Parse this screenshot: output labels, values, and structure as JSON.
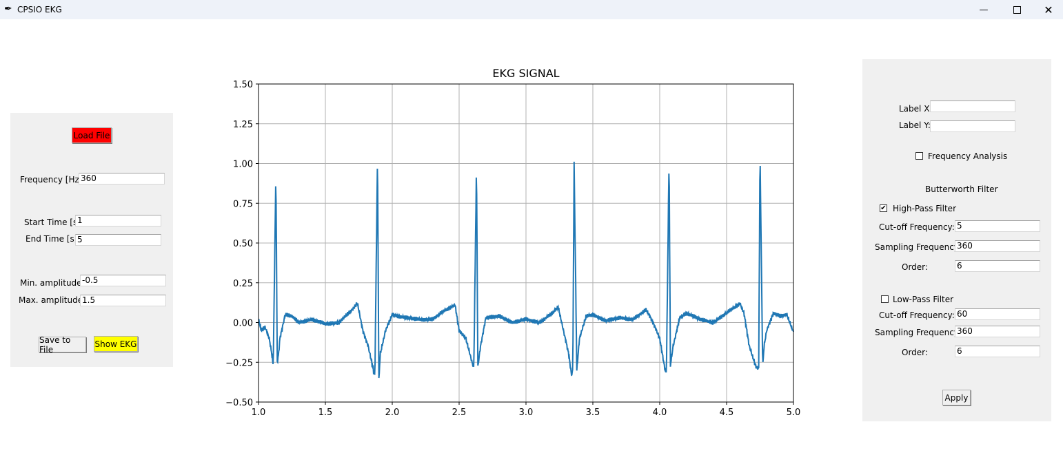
{
  "window": {
    "title": "CPSIO EKG",
    "icon": "feather-icon"
  },
  "left_panel": {
    "load_button": "Load File",
    "frequency_label": "Frequency [Hz]:",
    "frequency_value": "360",
    "start_time_label": "Start Time [s]:",
    "start_time_value": "1",
    "end_time_label": "End Time [s]:",
    "end_time_value": "5",
    "min_amp_label": "Min. amplitude:",
    "min_amp_value": "-0.5",
    "max_amp_label": "Max. amplitude:",
    "max_amp_value": "1.5",
    "save_button": "Save to File",
    "show_button": "Show EKG",
    "colors": {
      "load_button": "#ff0000",
      "show_button": "#ffff00"
    }
  },
  "right_panel": {
    "label_x_label": "Label X:",
    "label_x_value": "",
    "label_y_label": "Label Y:",
    "label_y_value": "",
    "frequency_analysis_label": "Frequency Analysis",
    "frequency_analysis_checked": false,
    "butterworth_title": "Butterworth Filter",
    "highpass": {
      "label": "High-Pass Filter",
      "checked": true,
      "cutoff_label": "Cut-off Frequency:",
      "cutoff_value": "5",
      "sampling_label": "Sampling Frequency:",
      "sampling_value": "360",
      "order_label": "Order:",
      "order_value": "6"
    },
    "lowpass": {
      "label": "Low-Pass Filter",
      "checked": false,
      "cutoff_label": "Cut-off Frequency:",
      "cutoff_value": "60",
      "sampling_label": "Sampling Frequency:",
      "sampling_value": "360",
      "order_label": "Order:",
      "order_value": "6"
    },
    "apply_button": "Apply"
  },
  "chart_data": {
    "type": "line",
    "title": "EKG SIGNAL",
    "xlabel": "",
    "ylabel": "",
    "xlim": [
      1.0,
      5.0
    ],
    "ylim": [
      -0.5,
      1.5
    ],
    "xticks": [
      "1.0",
      "1.5",
      "2.0",
      "2.5",
      "3.0",
      "3.5",
      "4.0",
      "4.5",
      "5.0"
    ],
    "yticks": [
      "−0.50",
      "−0.25",
      "0.00",
      "0.25",
      "0.50",
      "0.75",
      "1.00",
      "1.25",
      "1.50"
    ],
    "grid": true,
    "color": "#1f77b4",
    "series": [
      {
        "x": [
          1.0,
          1.02,
          1.05,
          1.08,
          1.1,
          1.11,
          1.13,
          1.14,
          1.15,
          1.16,
          1.2,
          1.25,
          1.3,
          1.4,
          1.5,
          1.6,
          1.7,
          1.74,
          1.78,
          1.82,
          1.86,
          1.87,
          1.89,
          1.9,
          1.91,
          1.95,
          2.0,
          2.1,
          2.2,
          2.3,
          2.4,
          2.47,
          2.5,
          2.55,
          2.6,
          2.61,
          2.63,
          2.64,
          2.66,
          2.7,
          2.8,
          2.9,
          3.0,
          3.1,
          3.2,
          3.24,
          3.28,
          3.32,
          3.34,
          3.35,
          3.36,
          3.38,
          3.4,
          3.45,
          3.5,
          3.6,
          3.7,
          3.8,
          3.9,
          3.95,
          4.0,
          4.04,
          4.05,
          4.07,
          4.08,
          4.1,
          4.15,
          4.2,
          4.3,
          4.4,
          4.5,
          4.6,
          4.63,
          4.67,
          4.72,
          4.74,
          4.75,
          4.77,
          4.78,
          4.8,
          4.85,
          4.9,
          4.95,
          5.0
        ],
        "y": [
          0.02,
          -0.05,
          -0.03,
          -0.1,
          -0.2,
          -0.27,
          0.94,
          -0.25,
          -0.2,
          -0.1,
          0.05,
          0.04,
          0.0,
          0.02,
          -0.01,
          0.0,
          0.08,
          0.12,
          -0.05,
          -0.15,
          -0.3,
          -0.34,
          1.06,
          -0.36,
          -0.2,
          -0.05,
          0.05,
          0.03,
          0.02,
          0.02,
          0.08,
          0.11,
          -0.05,
          -0.1,
          -0.26,
          -0.28,
          0.99,
          -0.28,
          -0.15,
          0.03,
          0.04,
          0.0,
          0.02,
          0.0,
          0.06,
          0.1,
          -0.05,
          -0.2,
          -0.33,
          -0.3,
          1.0,
          -0.3,
          -0.1,
          0.04,
          0.05,
          0.01,
          0.03,
          0.02,
          0.08,
          0.0,
          -0.1,
          -0.3,
          -0.31,
          1.04,
          -0.27,
          -0.15,
          0.03,
          0.06,
          0.02,
          0.0,
          0.06,
          0.12,
          0.06,
          -0.15,
          -0.28,
          -0.29,
          1.08,
          -0.28,
          -0.15,
          -0.05,
          0.06,
          0.04,
          0.05,
          -0.06
        ]
      }
    ]
  }
}
